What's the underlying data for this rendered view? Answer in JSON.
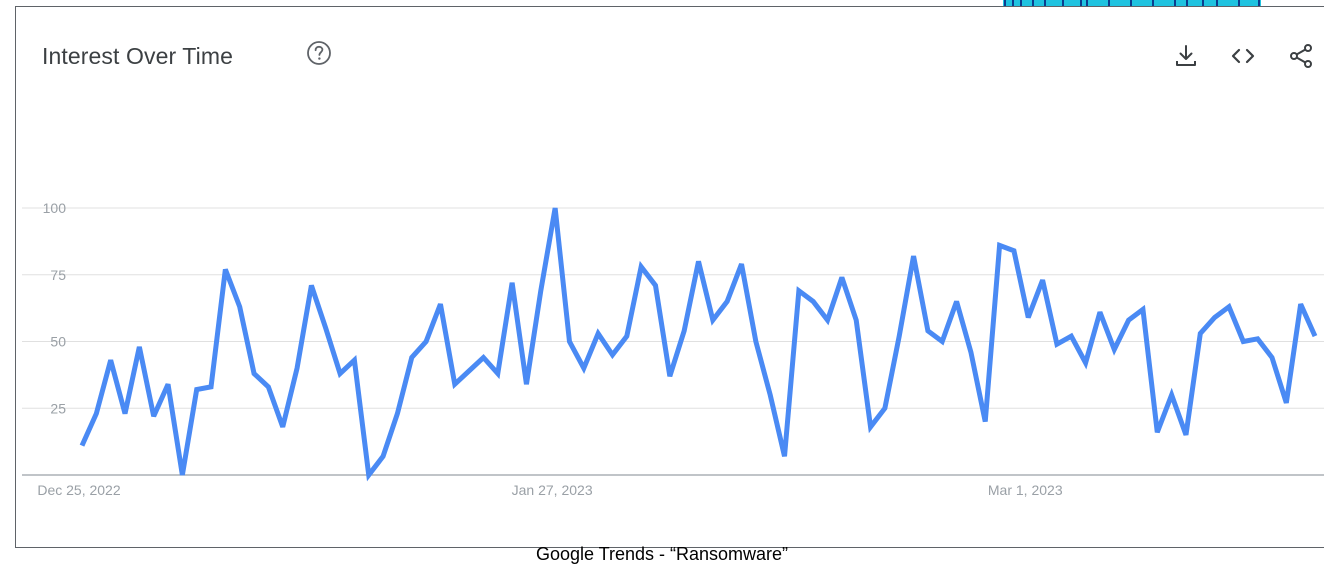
{
  "header": {
    "title": "Interest Over Time"
  },
  "caption": "Google Trends - “Ransomware”",
  "icons": {
    "help": "help-circle-icon",
    "download": "download-icon",
    "embed": "embed-code-icon",
    "share": "share-icon"
  },
  "colors": {
    "line": "#4a8af4",
    "grid": "#e0e0e0",
    "axis": "#9aa0a6",
    "text": "#3c4043",
    "corner_strip": "#1fc3e0"
  },
  "chart_data": {
    "type": "line",
    "title": "Interest Over Time",
    "xlabel": "",
    "ylabel": "",
    "ylim": [
      0,
      100
    ],
    "yticks": [
      25,
      50,
      75,
      100
    ],
    "ytick_labels": [
      "25",
      "50",
      "75",
      "100"
    ],
    "xtick_labels": [
      {
        "label": "Dec 25, 2022",
        "index": 0
      },
      {
        "label": "Jan 27, 2023",
        "index": 33
      },
      {
        "label": "Mar 1, 2023",
        "index": 66
      }
    ],
    "grid": true,
    "series": [
      {
        "values": [
          11,
          23,
          43,
          23,
          48,
          22,
          34,
          0,
          32,
          33,
          77,
          63,
          38,
          33,
          18,
          40,
          71,
          55,
          38,
          43,
          0,
          7,
          23,
          44,
          50,
          64,
          34,
          39,
          44,
          38,
          72,
          34,
          69,
          100,
          50,
          40,
          53,
          45,
          52,
          78,
          71,
          37,
          54,
          80,
          58,
          65,
          79,
          50,
          30,
          7,
          69,
          65,
          58,
          74,
          58,
          18,
          25,
          52,
          82,
          54,
          50,
          65,
          46,
          20,
          86,
          84,
          59,
          73,
          49,
          52,
          42,
          61,
          47,
          58,
          62,
          16,
          30,
          15,
          53,
          59,
          63,
          50,
          51,
          44,
          27,
          64,
          52
        ]
      }
    ]
  }
}
